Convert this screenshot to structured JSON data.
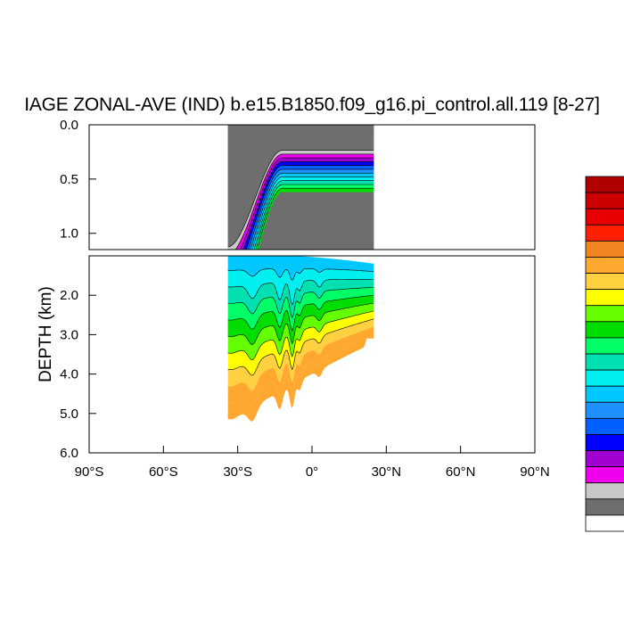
{
  "chart_data": {
    "type": "contour",
    "title": "IAGE ZONAL-AVE (IND) b.e15.B1850.f09_g16.pi_control.all.119 [8-27]",
    "ylabel": "DEPTH (km)",
    "xlabel": "",
    "x_ticks": [
      {
        "value": -90,
        "label": "90°S"
      },
      {
        "value": -60,
        "label": "60°S"
      },
      {
        "value": -30,
        "label": "30°S"
      },
      {
        "value": 0,
        "label": "0°"
      },
      {
        "value": 30,
        "label": "30°N"
      },
      {
        "value": 60,
        "label": "60°N"
      },
      {
        "value": 90,
        "label": "90°N"
      }
    ],
    "upper_panel": {
      "ylim": [
        0.0,
        1.15
      ],
      "y_ticks": [
        {
          "value": 0.0,
          "label": "0.0"
        },
        {
          "value": 0.5,
          "label": "0.5"
        },
        {
          "value": 1.0,
          "label": "1.0"
        }
      ]
    },
    "lower_panel": {
      "ylim": [
        1.0,
        6.0
      ],
      "y_ticks": [
        {
          "value": 2.0,
          "label": "2.0"
        },
        {
          "value": 3.0,
          "label": "3.0"
        },
        {
          "value": 4.0,
          "label": "4.0"
        },
        {
          "value": 5.0,
          "label": "5.0"
        },
        {
          "value": 6.0,
          "label": "6.0"
        }
      ]
    },
    "data_extent": {
      "lat_min": -34,
      "lat_max": 25
    },
    "colorbar": [
      "#ffffff",
      "#6e6e6e",
      "#c8c8c8",
      "#ee00ee",
      "#a000d0",
      "#0000ff",
      "#0060ff",
      "#1e90ff",
      "#00c8ff",
      "#00f0f0",
      "#00e0b0",
      "#00ff66",
      "#00dd00",
      "#66ff00",
      "#ffff00",
      "#ffd040",
      "#ffa830",
      "#f08420",
      "#ff2000",
      "#e80000",
      "#cc0000",
      "#b00000"
    ]
  }
}
